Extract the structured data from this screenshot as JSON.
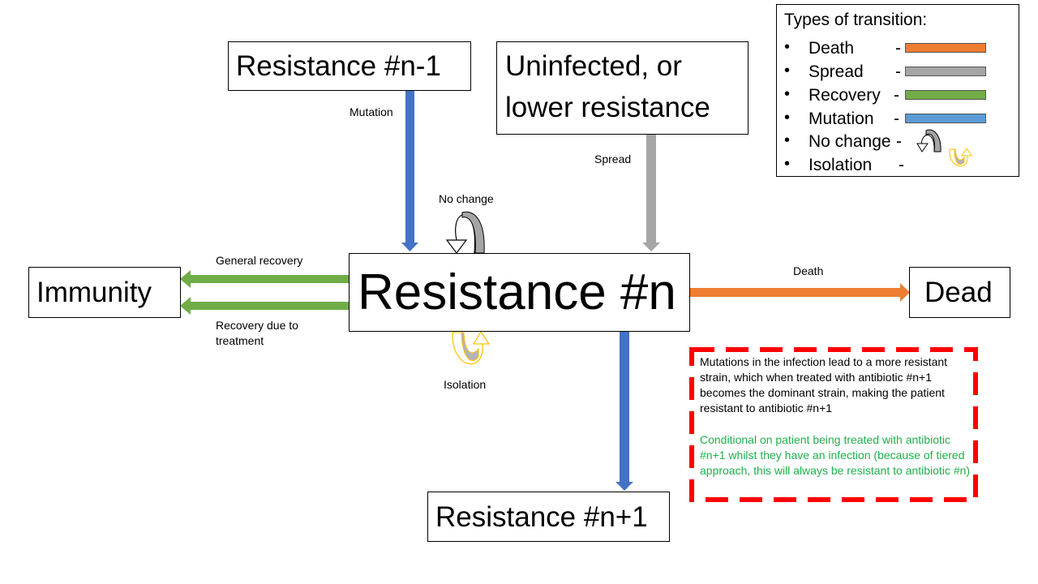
{
  "nodes": {
    "resistance_n_minus_1": "Resistance #n-1",
    "uninfected_line1": "Uninfected, or",
    "uninfected_line2": "lower resistance",
    "resistance_n": "Resistance #n",
    "immunity": "Immunity",
    "dead": "Dead",
    "resistance_n_plus_1": "Resistance #n+1"
  },
  "edge_labels": {
    "mutation": "Mutation",
    "spread": "Spread",
    "no_change": "No change",
    "general_recovery": "General recovery",
    "recovery_treatment_line1": "Recovery due to",
    "recovery_treatment_line2": "treatment",
    "death": "Death",
    "isolation": "Isolation"
  },
  "legend": {
    "title": "Types of transition:",
    "bullet": "•",
    "dash": "-",
    "items": [
      {
        "name": "Death",
        "color": "#ed7d31",
        "kind": "bar"
      },
      {
        "name": "Spread",
        "color": "#a5a5a5",
        "kind": "bar"
      },
      {
        "name": "Recovery",
        "color": "#70ad47",
        "kind": "bar"
      },
      {
        "name": "Mutation",
        "color": "#5b9bd5",
        "kind": "bar"
      },
      {
        "name": "No change",
        "color": "#a5a5a5",
        "kind": "loop"
      },
      {
        "name": "Isolation",
        "color": "#ffc000",
        "kind": "loop"
      }
    ]
  },
  "note": {
    "black_text": "Mutations in the infection lead to a more resistant strain, which when treated with antibiotic #n+1 becomes the dominant strain, making the patient resistant to antibiotic #n+1",
    "green_text": "Conditional on patient being treated with antibiotic #n+1 whilst they have an infection (because of tiered approach, this will always be resistant to antibiotic #n)",
    "border_color": "#ff0000",
    "green_color": "#1fb04b"
  },
  "colors": {
    "mutation_arrow": "#4472c4",
    "spread_arrow": "#a5a5a5",
    "recovery_arrow": "#70ad47",
    "death_arrow": "#ed7d31",
    "isolation_loop": "#ffc000"
  }
}
